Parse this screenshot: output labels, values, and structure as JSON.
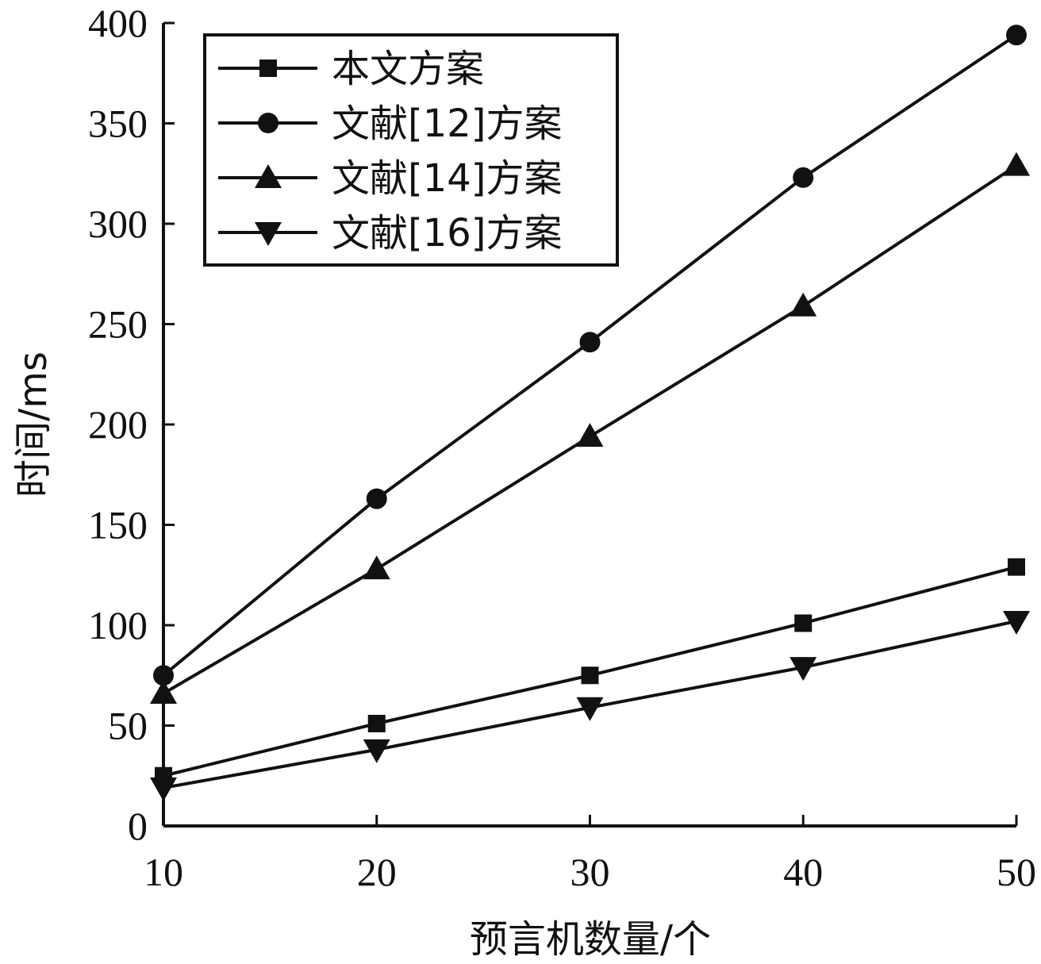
{
  "chart_data": {
    "type": "line",
    "xlabel": "预言机数量/个",
    "ylabel": "时间/ms",
    "x": [
      10,
      20,
      30,
      40,
      50
    ],
    "xlim": [
      10,
      50
    ],
    "ylim": [
      0,
      400
    ],
    "xticks": [
      "10",
      "20",
      "30",
      "40",
      "50"
    ],
    "yticks": [
      "0",
      "50",
      "100",
      "150",
      "200",
      "250",
      "300",
      "350",
      "400"
    ],
    "grid": false,
    "legend_position": "top-left",
    "series": [
      {
        "name": "本文方案",
        "marker": "square",
        "values": [
          25,
          51,
          75,
          101,
          129
        ]
      },
      {
        "name": "文献[12]方案",
        "marker": "circle",
        "values": [
          75,
          163,
          241,
          323,
          394
        ]
      },
      {
        "name": "文献[14]方案",
        "marker": "triangle-up",
        "values": [
          66,
          128,
          194,
          259,
          329
        ]
      },
      {
        "name": "文献[16]方案",
        "marker": "triangle-down",
        "values": [
          19,
          38,
          59,
          79,
          102
        ]
      }
    ],
    "colors": {
      "line": "#111111",
      "background": "#ffffff"
    }
  }
}
